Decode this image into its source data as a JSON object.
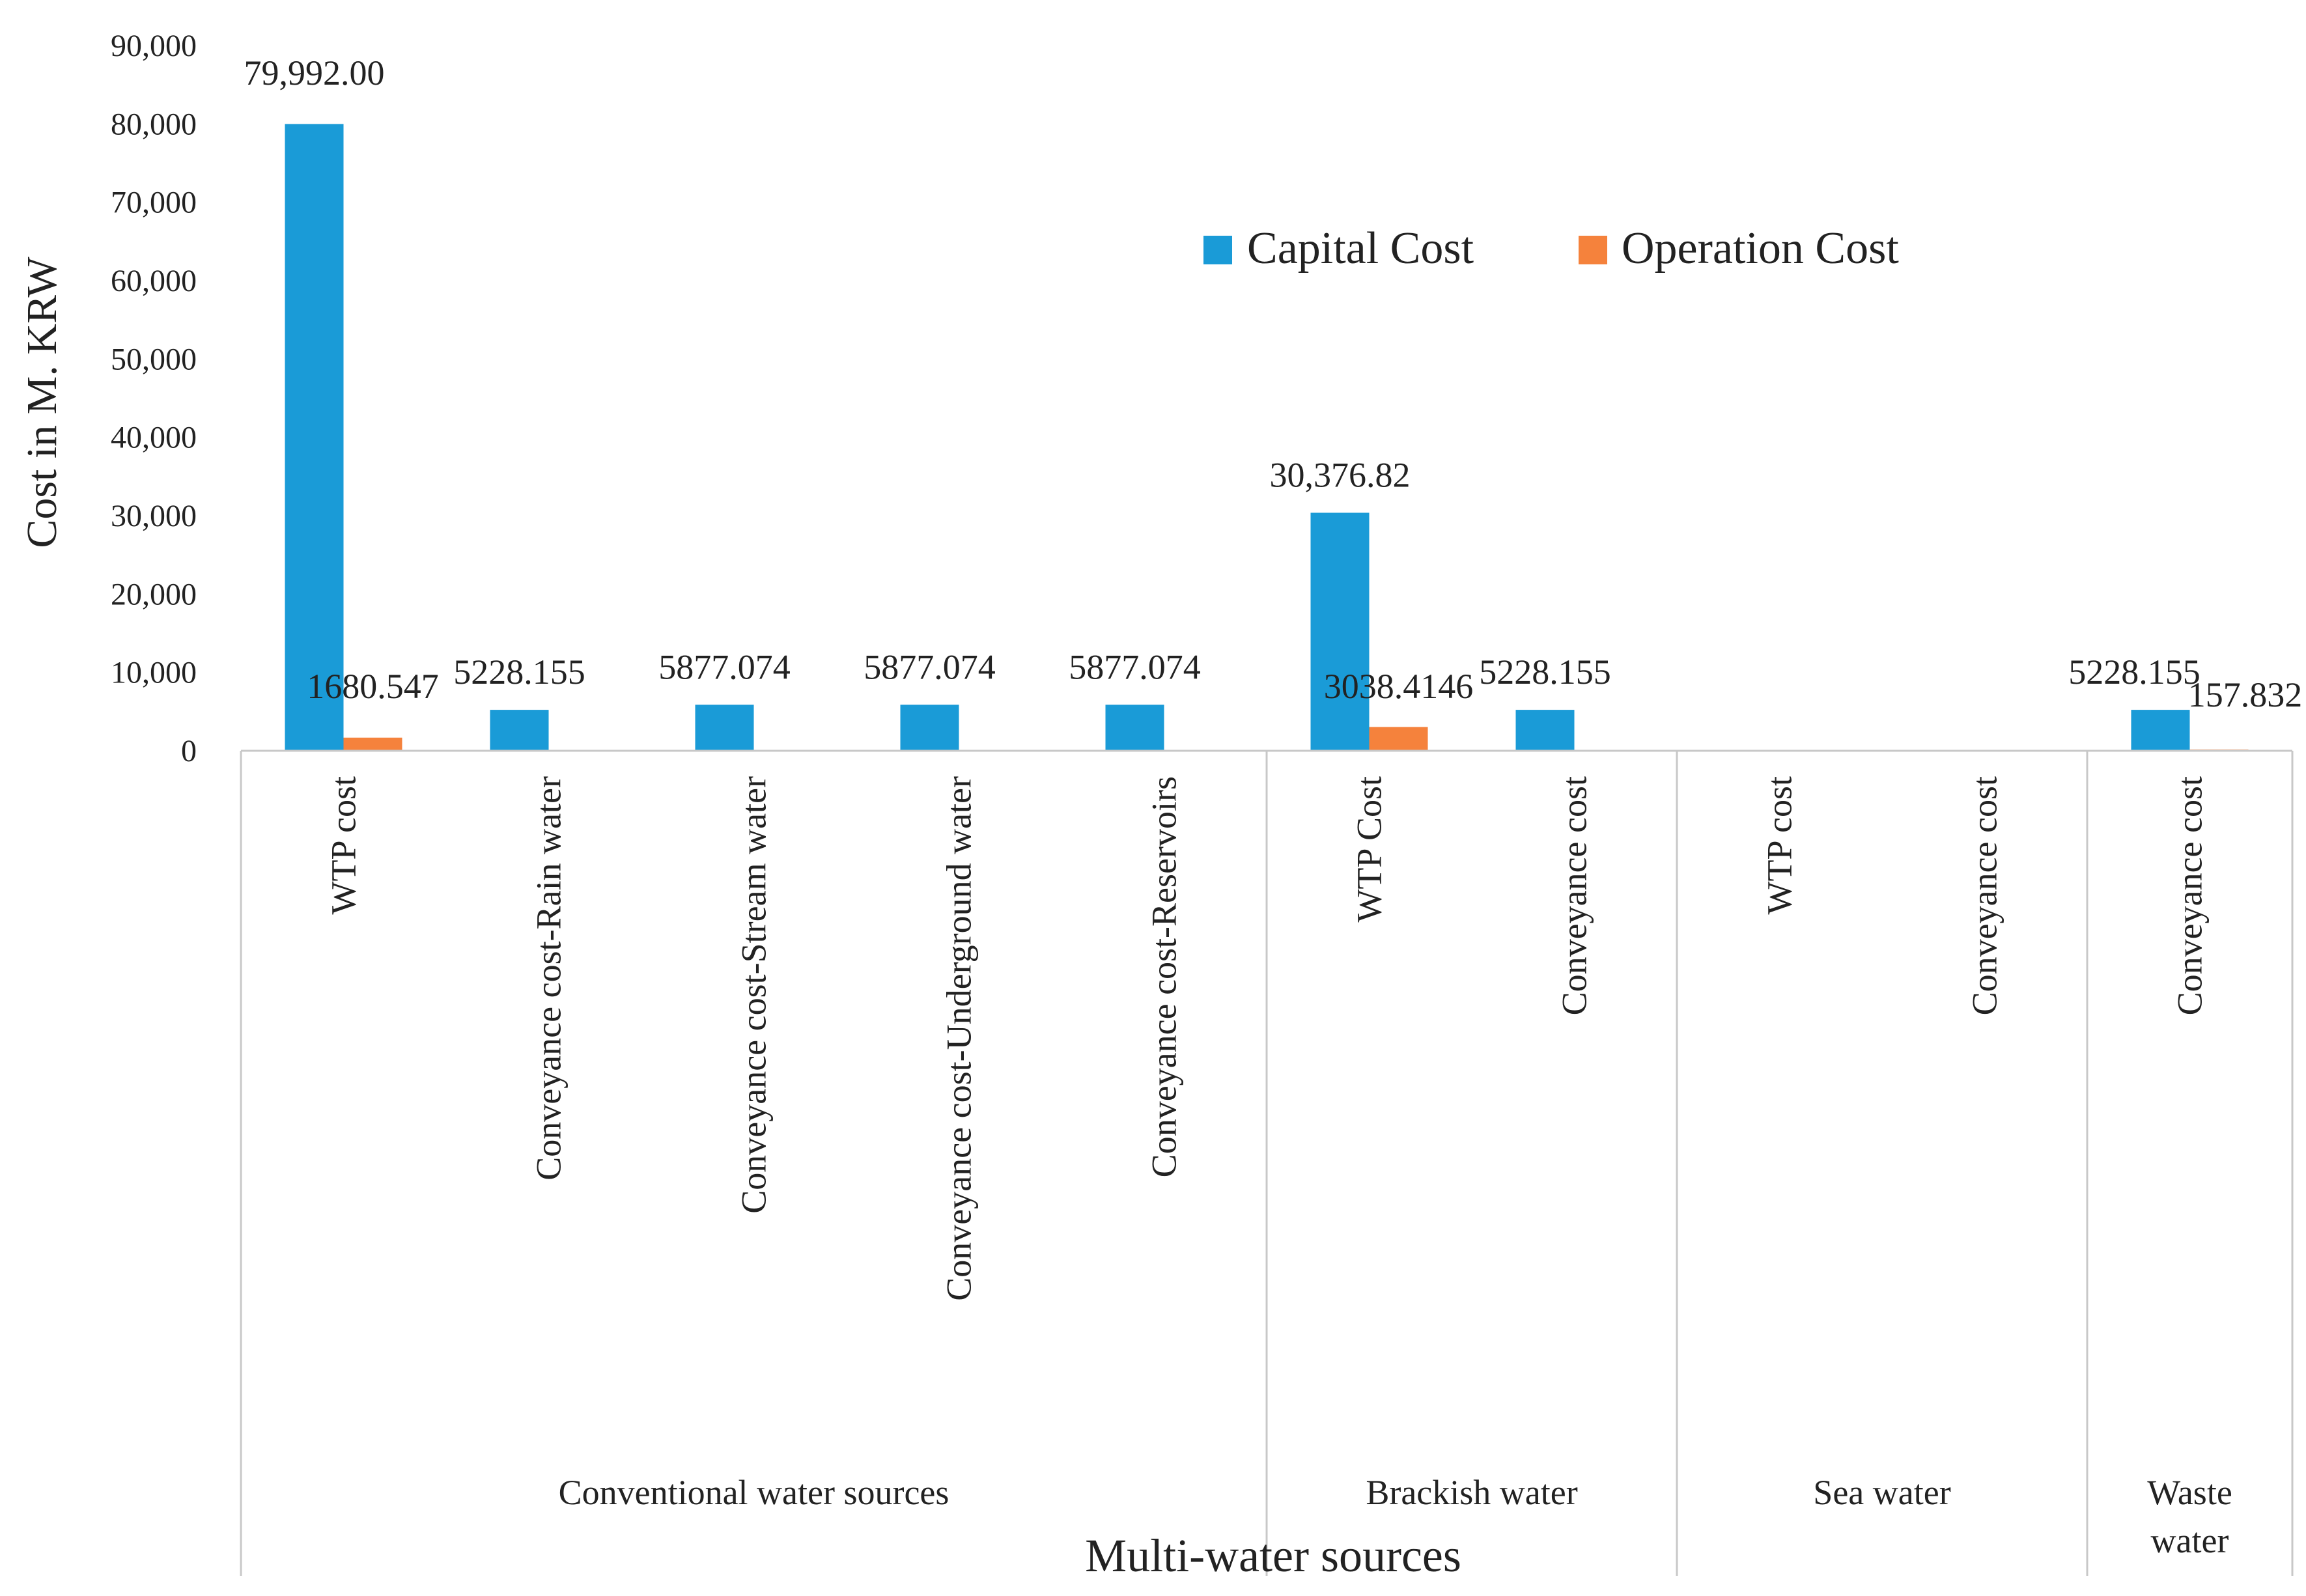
{
  "chart_data": {
    "type": "bar",
    "title": "",
    "ylabel": "Cost in M. KRW",
    "xlabel": "Multi-water sources",
    "ylim": [
      0,
      90000
    ],
    "yticks": [
      0,
      10000,
      20000,
      30000,
      40000,
      50000,
      60000,
      70000,
      80000,
      90000
    ],
    "ytick_labels": [
      "0",
      "10,000",
      "20,000",
      "30,000",
      "40,000",
      "50,000",
      "60,000",
      "70,000",
      "80,000",
      "90,000"
    ],
    "legend_position": "top-right",
    "categories": [
      "WTP cost",
      "Conveyance cost-Rain water",
      "Conveyance cost-Stream water",
      "Conveyance cost-Underground water",
      "Conveyance cost-Reservoirs",
      "WTP Cost",
      "Conveyance cost",
      "WTP cost",
      "Conveyance cost",
      "Conveyance cost"
    ],
    "groups": [
      {
        "label": "Conventional water sources",
        "start": 0,
        "count": 5
      },
      {
        "label": "Brackish water",
        "start": 5,
        "count": 2
      },
      {
        "label": "Sea water",
        "start": 7,
        "count": 2
      },
      {
        "label": "Waste\nwater",
        "start": 9,
        "count": 1
      }
    ],
    "series": [
      {
        "name": "Capital Cost",
        "color": "#1a9bd7",
        "values": [
          79992.0,
          5228.155,
          5877.074,
          5877.074,
          5877.074,
          30376.82,
          5228.155,
          0,
          0,
          5228.155
        ],
        "labels": [
          "79,992.00",
          "5228.155",
          "5877.074",
          "5877.074",
          "5877.074",
          "30,376.82",
          "5228.155",
          "",
          "",
          "5228.155"
        ]
      },
      {
        "name": "Operation Cost",
        "color": "#f5823c",
        "values": [
          1680.547,
          0,
          0,
          0,
          0,
          3038.4146,
          0,
          0,
          0,
          157.832
        ],
        "labels": [
          "1680.547",
          "",
          "",
          "",
          "",
          "3038.4146",
          "",
          "",
          "",
          "157.832"
        ]
      }
    ]
  }
}
